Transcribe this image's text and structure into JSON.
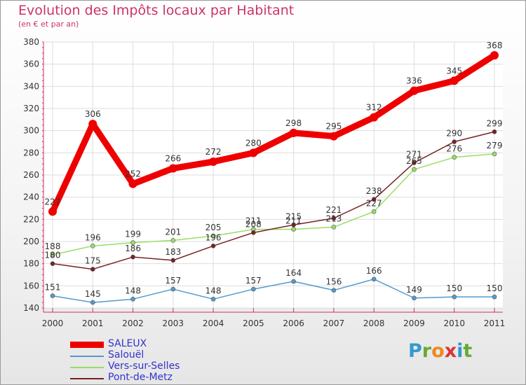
{
  "header": {
    "title": "Evolution des Impôts locaux par Habitant",
    "subtitle": "(en € et par an)"
  },
  "logo": {
    "text": "Proxiti"
  },
  "chart_data": {
    "type": "line",
    "title": "Evolution des Impôts locaux par Habitant",
    "subtitle": "(en € et par an)",
    "xlabel": "",
    "ylabel": "",
    "x": [
      "2000",
      "2001",
      "2002",
      "2003",
      "2004",
      "2005",
      "2006",
      "2007",
      "2008",
      "2009",
      "2010",
      "2011"
    ],
    "ylim": [
      140,
      380
    ],
    "yticks": [
      140,
      160,
      180,
      200,
      220,
      240,
      260,
      280,
      300,
      320,
      340,
      360,
      380
    ],
    "grid": true,
    "legend_position": "bottom-left",
    "series": [
      {
        "name": "SALEUX",
        "color": "#ee0000",
        "values": [
          227,
          306,
          252,
          266,
          272,
          280,
          298,
          295,
          312,
          336,
          345,
          368
        ],
        "labels": [
          "227",
          "306",
          "252",
          "266",
          "272",
          "280",
          "298",
          "295",
          "312",
          "336",
          "345",
          "368"
        ]
      },
      {
        "name": "Salouël",
        "color": "#5599cc",
        "values": [
          151,
          145,
          148,
          157,
          148,
          157,
          164,
          156,
          166,
          149,
          150,
          150
        ],
        "labels": [
          "151",
          "145",
          "148",
          "157",
          "148",
          "157",
          "164",
          "156",
          "166",
          "149",
          "150",
          "150"
        ]
      },
      {
        "name": "Vers-sur-Selles",
        "color": "#99dd66",
        "values": [
          188,
          196,
          199,
          201,
          205,
          211,
          211,
          213,
          227,
          265,
          276,
          279
        ],
        "labels": [
          "188",
          "196",
          "199",
          "201",
          "205",
          "211",
          "211",
          "213",
          "227",
          "265",
          "276",
          "279"
        ]
      },
      {
        "name": "Pont-de-Metz",
        "color": "#772222",
        "values": [
          180,
          175,
          186,
          183,
          196,
          208,
          215,
          221,
          238,
          271,
          290,
          299
        ],
        "labels": [
          "180",
          "175",
          "186",
          "183",
          "196",
          "208",
          "215",
          "221",
          "238",
          "271",
          "290",
          "299"
        ]
      }
    ]
  }
}
